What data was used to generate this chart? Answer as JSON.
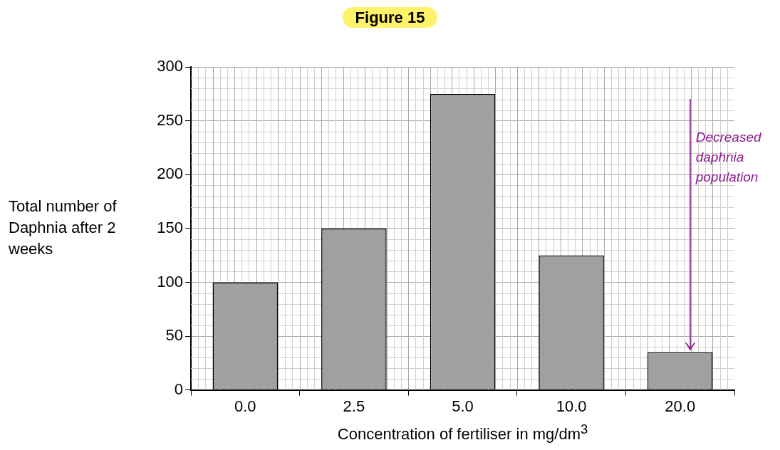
{
  "chart_data": {
    "type": "bar",
    "title": "Figure 15",
    "xlabel": "Concentration of fertiliser in mg/dm$^{3}$",
    "ylabel": "Total number of Daphnia after 2 weeks",
    "categories": [
      "0.0",
      "2.5",
      "5.0",
      "10.0",
      "20.0"
    ],
    "values": [
      100,
      150,
      275,
      125,
      35
    ],
    "color": "#a0a0a0",
    "ylim": [
      0,
      300
    ],
    "yticks": [
      0,
      50,
      100,
      150,
      200,
      250,
      300
    ],
    "grid": true,
    "annotations": [
      "Decreased daphnia population"
    ]
  }
}
